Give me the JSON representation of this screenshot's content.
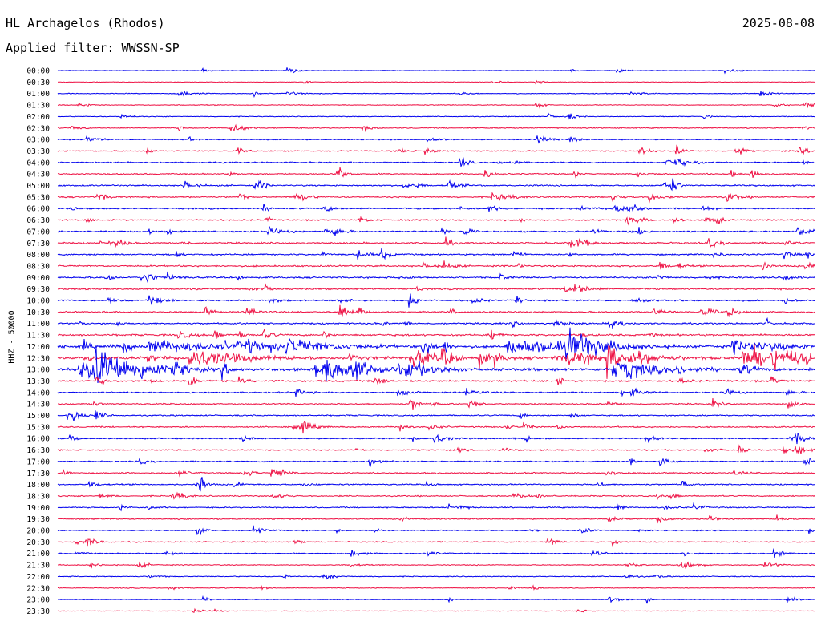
{
  "header": {
    "station": "HL Archagelos (Rhodos)",
    "date": "2025-08-08",
    "filter": "Applied filter: WWSSN-SP"
  },
  "colors": {
    "line_a": "#0000ee",
    "line_b": "#ee1144"
  },
  "chart_data": {
    "type": "line",
    "title": "HL Archagelos (Rhodos)",
    "date": "2025-08-08",
    "ylabel": "HHZ - 50000",
    "row_labels": [
      "00:00",
      "00:30",
      "01:00",
      "01:30",
      "02:00",
      "02:30",
      "03:00",
      "03:30",
      "04:00",
      "04:30",
      "05:00",
      "05:30",
      "06:00",
      "06:30",
      "07:00",
      "07:30",
      "08:00",
      "08:30",
      "09:00",
      "09:30",
      "10:00",
      "10:30",
      "11:00",
      "11:30",
      "12:00",
      "12:30",
      "13:00",
      "13:30",
      "14:00",
      "14:30",
      "15:00",
      "15:30",
      "16:00",
      "16:30",
      "17:00",
      "17:30",
      "18:00",
      "18:30",
      "19:00",
      "19:30",
      "20:00",
      "20:30",
      "21:00",
      "21:30",
      "22:00",
      "22:30",
      "23:00",
      "23:30"
    ],
    "row_colors": [
      "blue",
      "red"
    ],
    "noise_level": [
      0.4,
      0.5,
      0.6,
      0.6,
      0.6,
      0.8,
      0.8,
      0.9,
      1.0,
      1.0,
      1.1,
      1.1,
      1.1,
      1.1,
      1.2,
      1.2,
      1.2,
      1.2,
      1.2,
      1.2,
      1.2,
      1.2,
      1.2,
      1.4,
      2.0,
      2.4,
      2.2,
      1.4,
      1.1,
      1.0,
      1.0,
      1.0,
      1.0,
      1.0,
      1.0,
      1.0,
      1.0,
      0.9,
      0.9,
      0.9,
      0.8,
      0.8,
      0.8,
      0.7,
      0.7,
      0.6,
      0.5,
      0.4
    ]
  }
}
